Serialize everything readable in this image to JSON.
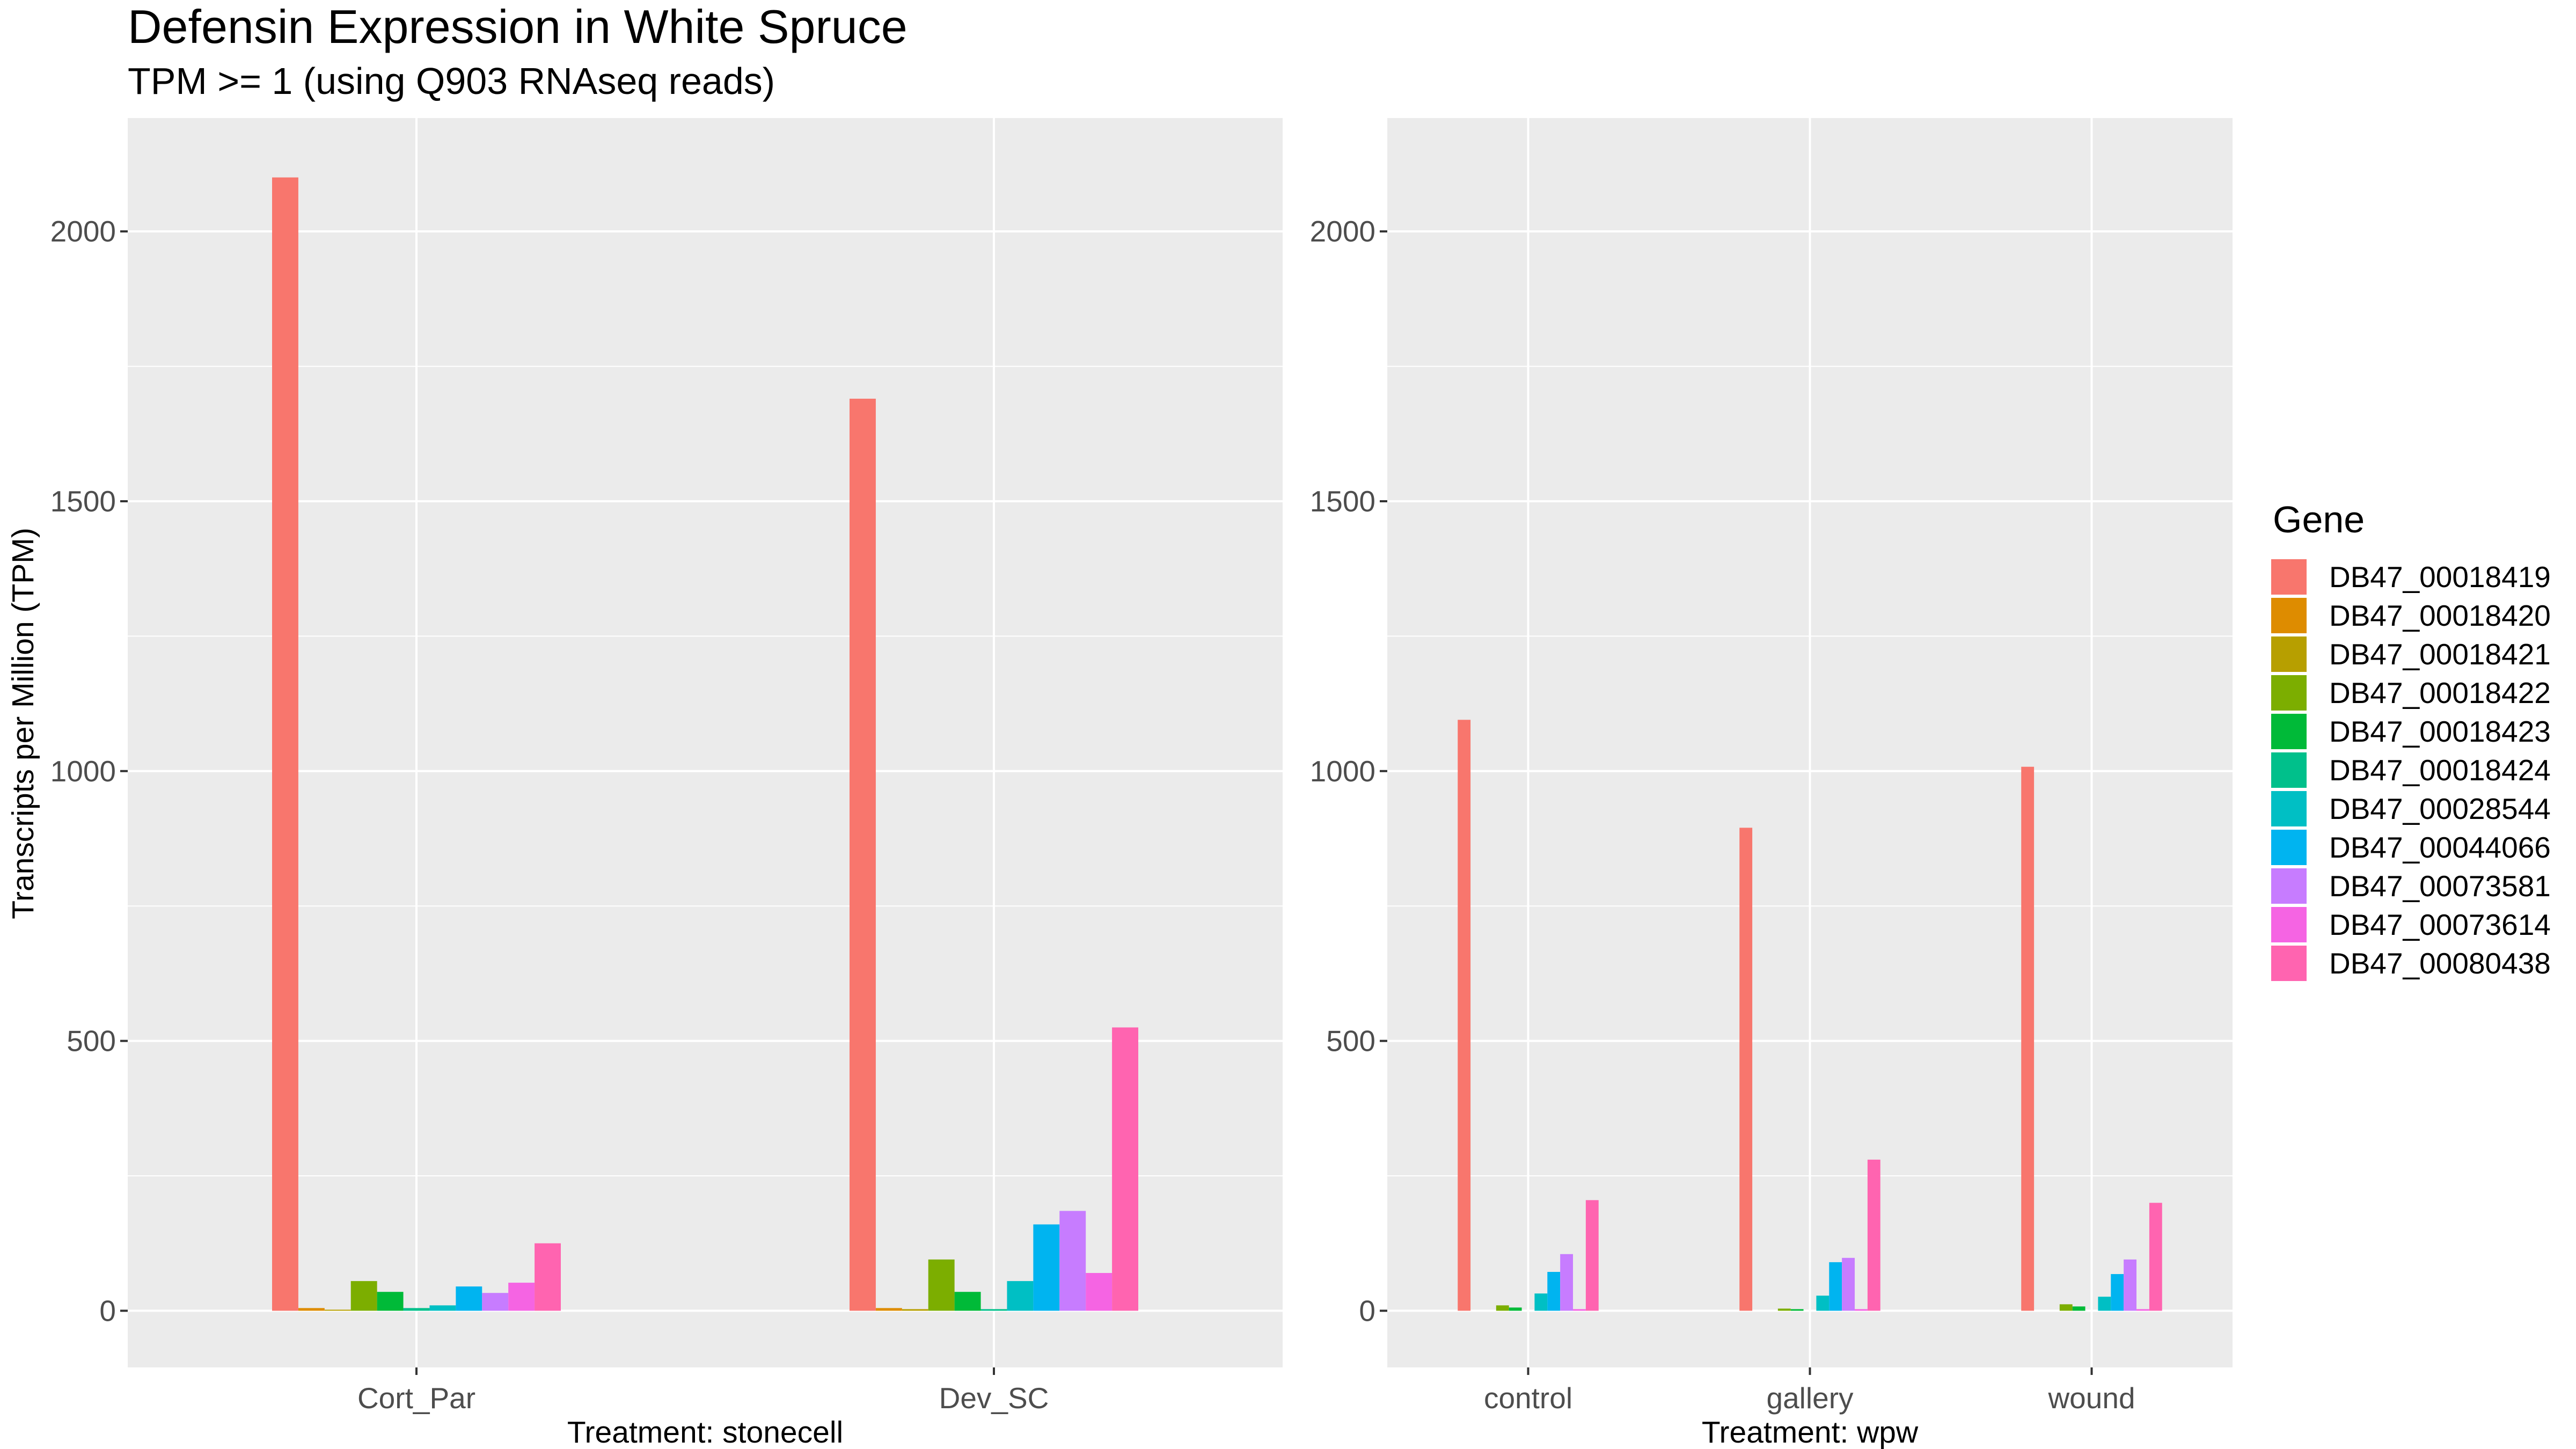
{
  "title": "Defensin Expression in White Spruce",
  "subtitle": "TPM >= 1 (using Q903 RNAseq reads)",
  "legend": {
    "title": "Gene",
    "entries": [
      {
        "label": "DB47_00018419",
        "color": "#F8766D"
      },
      {
        "label": "DB47_00018420",
        "color": "#DE8C00"
      },
      {
        "label": "DB47_00018421",
        "color": "#B79F00"
      },
      {
        "label": "DB47_00018422",
        "color": "#7CAE00"
      },
      {
        "label": "DB47_00018423",
        "color": "#00BA38"
      },
      {
        "label": "DB47_00018424",
        "color": "#00C08B"
      },
      {
        "label": "DB47_00028544",
        "color": "#00BFC4"
      },
      {
        "label": "DB47_00044066",
        "color": "#00B4F0"
      },
      {
        "label": "DB47_00073581",
        "color": "#C77CFF"
      },
      {
        "label": "DB47_00073614",
        "color": "#F564E3"
      },
      {
        "label": "DB47_00080438",
        "color": "#FF64B0"
      }
    ]
  },
  "chart_data": [
    {
      "type": "bar",
      "xlabel": "Treatment: stonecell",
      "ylabel": "Transcripts per Million (TPM)",
      "ylim": [
        -105,
        2210
      ],
      "yticks": [
        0,
        500,
        1000,
        1500,
        2000
      ],
      "grid": true,
      "categories": [
        "Cort_Par",
        "Dev_SC"
      ],
      "series": [
        {
          "name": "DB47_00018419",
          "values": [
            2100,
            1690
          ]
        },
        {
          "name": "DB47_00018420",
          "values": [
            5,
            5
          ]
        },
        {
          "name": "DB47_00018421",
          "values": [
            2,
            3
          ]
        },
        {
          "name": "DB47_00018422",
          "values": [
            55,
            95
          ]
        },
        {
          "name": "DB47_00018423",
          "values": [
            35,
            35
          ]
        },
        {
          "name": "DB47_00018424",
          "values": [
            5,
            3
          ]
        },
        {
          "name": "DB47_00028544",
          "values": [
            10,
            55
          ]
        },
        {
          "name": "DB47_00044066",
          "values": [
            45,
            160
          ]
        },
        {
          "name": "DB47_00073581",
          "values": [
            33,
            185
          ]
        },
        {
          "name": "DB47_00073614",
          "values": [
            52,
            70
          ]
        },
        {
          "name": "DB47_00080438",
          "values": [
            125,
            525
          ]
        }
      ]
    },
    {
      "type": "bar",
      "xlabel": "Treatment: wpw",
      "ylabel": "",
      "ylim": [
        -105,
        2210
      ],
      "yticks": [
        0,
        500,
        1000,
        1500,
        2000
      ],
      "grid": true,
      "categories": [
        "control",
        "gallery",
        "wound"
      ],
      "series": [
        {
          "name": "DB47_00018419",
          "values": [
            1095,
            895,
            1008
          ]
        },
        {
          "name": "DB47_00018420",
          "values": [
            null,
            null,
            null
          ]
        },
        {
          "name": "DB47_00018421",
          "values": [
            null,
            null,
            null
          ]
        },
        {
          "name": "DB47_00018422",
          "values": [
            10,
            4,
            12
          ]
        },
        {
          "name": "DB47_00018423",
          "values": [
            6,
            3,
            8
          ]
        },
        {
          "name": "DB47_00018424",
          "values": [
            null,
            null,
            null
          ]
        },
        {
          "name": "DB47_00028544",
          "values": [
            32,
            28,
            26
          ]
        },
        {
          "name": "DB47_00044066",
          "values": [
            72,
            90,
            68
          ]
        },
        {
          "name": "DB47_00073581",
          "values": [
            105,
            98,
            95
          ]
        },
        {
          "name": "DB47_00073614",
          "values": [
            3,
            3,
            3
          ]
        },
        {
          "name": "DB47_00080438",
          "values": [
            205,
            280,
            200
          ]
        }
      ]
    }
  ]
}
